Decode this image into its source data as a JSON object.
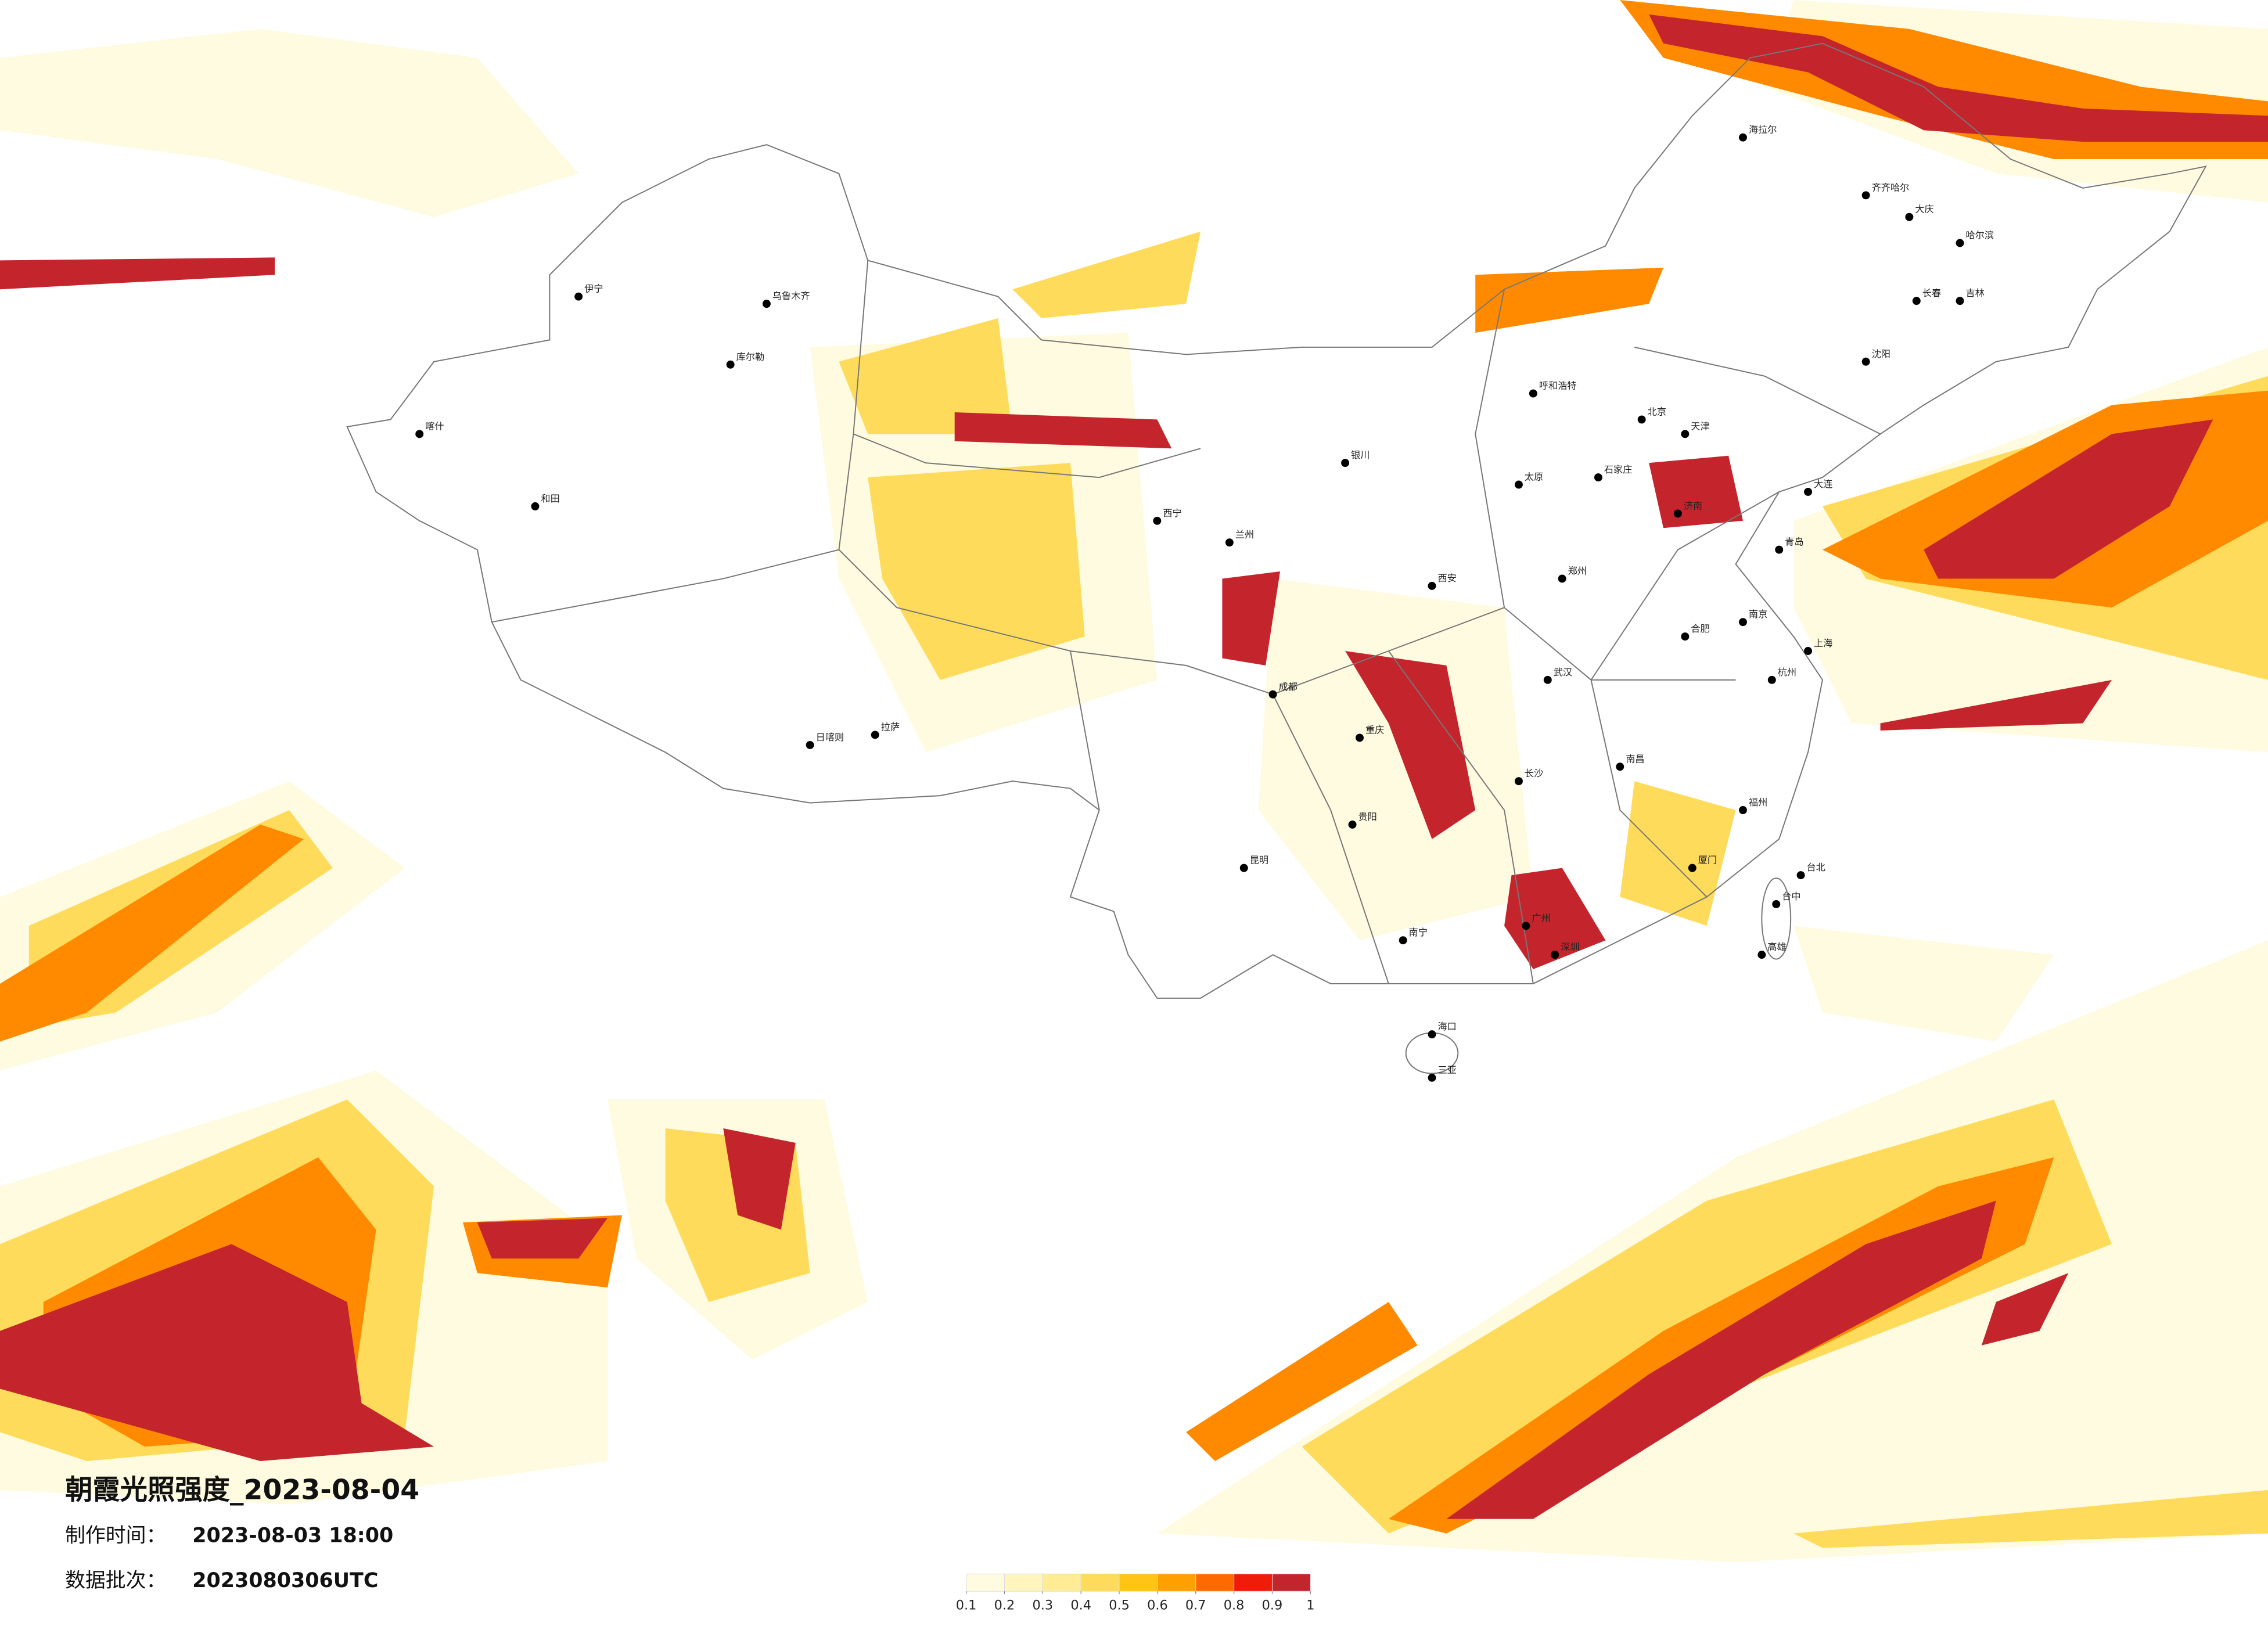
{
  "title": "朝霞光照强度_2023-08-04",
  "info": [
    {
      "label": "制作时间：",
      "value": "2023-08-03 18:00"
    },
    {
      "label": "数据批次：",
      "value": "2023080306UTC"
    }
  ],
  "legend": {
    "ticks": [
      0.1,
      0.2,
      0.3,
      0.4,
      0.5,
      0.6,
      0.7,
      0.8,
      0.9,
      1
    ],
    "colors": [
      "#fffbe0",
      "#fff5bd",
      "#ffec94",
      "#ffdb5c",
      "#ffc414",
      "#ffa000",
      "#ff6a00",
      "#f01c0a",
      "#c4242c"
    ]
  },
  "cities": [
    "海拉尔",
    "齐齐哈尔",
    "大庆",
    "哈尔滨",
    "长春",
    "吉林",
    "沈阳",
    "大连",
    "北京",
    "天津",
    "石家庄",
    "太原",
    "呼和浩特",
    "济南",
    "青岛",
    "郑州",
    "西安",
    "兰州",
    "西宁",
    "银川",
    "乌鲁木齐",
    "伊宁",
    "喀什",
    "和田",
    "库尔勒",
    "拉萨",
    "日喀则",
    "南京",
    "上海",
    "杭州",
    "合肥",
    "武汉",
    "长沙",
    "南昌",
    "福州",
    "成都",
    "重庆",
    "贵阳",
    "昆明",
    "南宁",
    "广州",
    "深圳",
    "厦门",
    "海口",
    "台北",
    "台中",
    "高雄",
    "三亚"
  ]
}
